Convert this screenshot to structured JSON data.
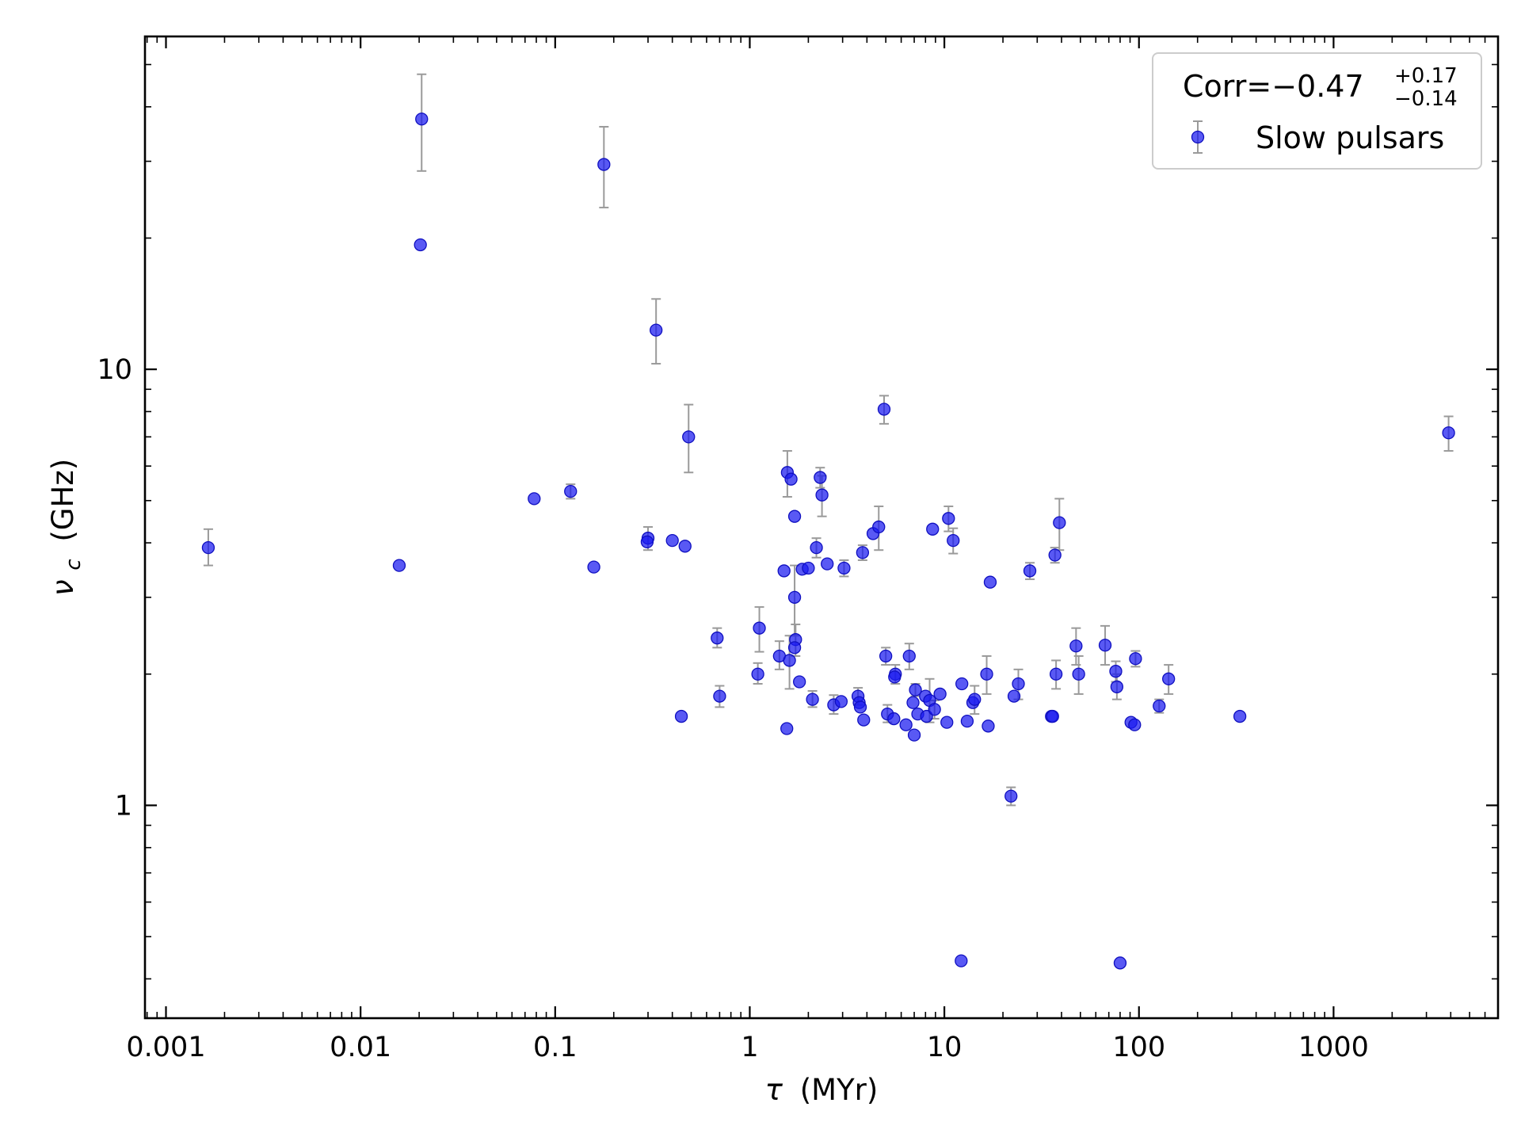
{
  "chart_data": {
    "type": "scatter",
    "xlabel_var": "τ",
    "xlabel_unit": "(MYr)",
    "ylabel_var": "ν",
    "ylabel_sub": "c",
    "ylabel_unit": "(GHz)",
    "xscale": "log",
    "yscale": "log",
    "xlim": [
      0.00078,
      7000
    ],
    "ylim": [
      0.325,
      58
    ],
    "grid": false,
    "legend_position": "top-right",
    "legend": {
      "corr_prefix": "Corr=−0.47",
      "corr_plus": "+0.17",
      "corr_minus": "−0.14",
      "series_label": "Slow pulsars"
    },
    "colors": {
      "points": "#1a1af0",
      "errorbars": "#9a9a9a"
    },
    "x_ticks": [
      {
        "value": 0.001,
        "label": "0.001"
      },
      {
        "value": 0.01,
        "label": "0.01"
      },
      {
        "value": 0.1,
        "label": "0.1"
      },
      {
        "value": 1,
        "label": "1"
      },
      {
        "value": 10,
        "label": "10"
      },
      {
        "value": 100,
        "label": "100"
      },
      {
        "value": 1000,
        "label": "1000"
      }
    ],
    "y_ticks": [
      {
        "value": 1,
        "label": "1"
      },
      {
        "value": 10,
        "label": "10"
      }
    ],
    "points": [
      {
        "x": 0.00165,
        "y": 3.9,
        "lo": 3.55,
        "hi": 4.3
      },
      {
        "x": 0.0158,
        "y": 3.55
      },
      {
        "x": 0.0206,
        "y": 37.5,
        "lo": 28.5,
        "hi": 47.5
      },
      {
        "x": 0.0203,
        "y": 19.3
      },
      {
        "x": 0.078,
        "y": 5.05
      },
      {
        "x": 0.12,
        "y": 5.25,
        "lo": 5.05,
        "hi": 5.45
      },
      {
        "x": 0.158,
        "y": 3.52
      },
      {
        "x": 0.178,
        "y": 29.5,
        "lo": 23.5,
        "hi": 36.0
      },
      {
        "x": 0.3,
        "y": 4.1,
        "lo": 3.85,
        "hi": 4.35
      },
      {
        "x": 0.297,
        "y": 4.02
      },
      {
        "x": 0.33,
        "y": 12.3,
        "lo": 10.3,
        "hi": 14.5
      },
      {
        "x": 0.4,
        "y": 4.05
      },
      {
        "x": 0.465,
        "y": 3.93
      },
      {
        "x": 0.445,
        "y": 1.6
      },
      {
        "x": 0.485,
        "y": 7.0,
        "lo": 5.8,
        "hi": 8.3
      },
      {
        "x": 0.68,
        "y": 2.42,
        "lo": 2.3,
        "hi": 2.55
      },
      {
        "x": 0.7,
        "y": 1.78,
        "lo": 1.68,
        "hi": 1.88
      },
      {
        "x": 1.1,
        "y": 2.0,
        "lo": 1.9,
        "hi": 2.12
      },
      {
        "x": 1.12,
        "y": 2.55,
        "lo": 2.25,
        "hi": 2.85
      },
      {
        "x": 1.42,
        "y": 2.2,
        "lo": 2.05,
        "hi": 2.38
      },
      {
        "x": 1.5,
        "y": 3.45
      },
      {
        "x": 1.55,
        "y": 1.5
      },
      {
        "x": 1.56,
        "y": 5.8,
        "lo": 5.1,
        "hi": 6.5
      },
      {
        "x": 1.6,
        "y": 2.15,
        "lo": 1.85,
        "hi": 2.45
      },
      {
        "x": 1.63,
        "y": 5.6
      },
      {
        "x": 1.7,
        "y": 4.6
      },
      {
        "x": 1.7,
        "y": 3.0,
        "lo": 2.45,
        "hi": 3.55
      },
      {
        "x": 1.72,
        "y": 2.4,
        "lo": 2.2,
        "hi": 2.6
      },
      {
        "x": 1.7,
        "y": 2.3
      },
      {
        "x": 1.8,
        "y": 1.92
      },
      {
        "x": 1.86,
        "y": 3.48
      },
      {
        "x": 2.0,
        "y": 3.5
      },
      {
        "x": 2.1,
        "y": 1.75,
        "lo": 1.68,
        "hi": 1.83
      },
      {
        "x": 2.2,
        "y": 3.9,
        "lo": 3.7,
        "hi": 4.1
      },
      {
        "x": 2.3,
        "y": 5.65,
        "lo": 5.35,
        "hi": 5.95
      },
      {
        "x": 2.35,
        "y": 5.15,
        "lo": 4.6,
        "hi": 5.7
      },
      {
        "x": 2.5,
        "y": 3.58
      },
      {
        "x": 2.7,
        "y": 1.7,
        "lo": 1.62,
        "hi": 1.79
      },
      {
        "x": 2.95,
        "y": 1.73
      },
      {
        "x": 3.05,
        "y": 3.5,
        "lo": 3.35,
        "hi": 3.65
      },
      {
        "x": 3.6,
        "y": 1.78,
        "lo": 1.7,
        "hi": 1.86
      },
      {
        "x": 3.65,
        "y": 1.72
      },
      {
        "x": 3.7,
        "y": 1.68
      },
      {
        "x": 3.8,
        "y": 3.8,
        "lo": 3.65,
        "hi": 3.95
      },
      {
        "x": 3.85,
        "y": 1.57
      },
      {
        "x": 4.3,
        "y": 4.2
      },
      {
        "x": 4.6,
        "y": 4.35,
        "lo": 3.85,
        "hi": 4.85
      },
      {
        "x": 4.9,
        "y": 8.1,
        "lo": 7.5,
        "hi": 8.7
      },
      {
        "x": 5.0,
        "y": 2.2,
        "lo": 2.1,
        "hi": 2.3
      },
      {
        "x": 5.1,
        "y": 1.62,
        "lo": 1.55,
        "hi": 1.7
      },
      {
        "x": 5.5,
        "y": 1.58
      },
      {
        "x": 5.6,
        "y": 2.0,
        "lo": 1.9,
        "hi": 2.1
      },
      {
        "x": 5.55,
        "y": 1.97
      },
      {
        "x": 6.35,
        "y": 1.53
      },
      {
        "x": 6.6,
        "y": 2.2,
        "lo": 2.05,
        "hi": 2.35
      },
      {
        "x": 6.9,
        "y": 1.72
      },
      {
        "x": 7.1,
        "y": 1.84,
        "lo": 1.78,
        "hi": 1.9
      },
      {
        "x": 7.0,
        "y": 1.45
      },
      {
        "x": 7.3,
        "y": 1.62
      },
      {
        "x": 8.0,
        "y": 1.78
      },
      {
        "x": 8.1,
        "y": 1.6
      },
      {
        "x": 8.4,
        "y": 1.74,
        "lo": 1.55,
        "hi": 1.95
      },
      {
        "x": 8.7,
        "y": 4.3
      },
      {
        "x": 8.9,
        "y": 1.66,
        "lo": 1.58,
        "hi": 1.74
      },
      {
        "x": 9.5,
        "y": 1.8
      },
      {
        "x": 10.3,
        "y": 1.55
      },
      {
        "x": 10.5,
        "y": 4.55,
        "lo": 4.25,
        "hi": 4.85
      },
      {
        "x": 11.1,
        "y": 4.05,
        "lo": 3.78,
        "hi": 4.32
      },
      {
        "x": 12.2,
        "y": 0.44
      },
      {
        "x": 12.3,
        "y": 1.9
      },
      {
        "x": 13.1,
        "y": 1.56
      },
      {
        "x": 14.0,
        "y": 1.72
      },
      {
        "x": 14.3,
        "y": 1.75,
        "lo": 1.62,
        "hi": 1.88
      },
      {
        "x": 16.5,
        "y": 2.0,
        "lo": 1.8,
        "hi": 2.2
      },
      {
        "x": 16.8,
        "y": 1.52
      },
      {
        "x": 17.2,
        "y": 3.25
      },
      {
        "x": 22.0,
        "y": 1.05,
        "lo": 1.0,
        "hi": 1.1
      },
      {
        "x": 22.8,
        "y": 1.78
      },
      {
        "x": 24.0,
        "y": 1.9,
        "lo": 1.75,
        "hi": 2.05
      },
      {
        "x": 27.5,
        "y": 3.45,
        "lo": 3.3,
        "hi": 3.6
      },
      {
        "x": 35.5,
        "y": 1.6
      },
      {
        "x": 36.0,
        "y": 1.6
      },
      {
        "x": 37.0,
        "y": 3.75,
        "lo": 3.6,
        "hi": 3.9
      },
      {
        "x": 37.5,
        "y": 2.0,
        "lo": 1.85,
        "hi": 2.15
      },
      {
        "x": 39.0,
        "y": 4.45,
        "lo": 3.85,
        "hi": 5.05
      },
      {
        "x": 47.5,
        "y": 2.32,
        "lo": 2.1,
        "hi": 2.55
      },
      {
        "x": 49.0,
        "y": 2.0,
        "lo": 1.8,
        "hi": 2.2
      },
      {
        "x": 67.0,
        "y": 2.33,
        "lo": 2.1,
        "hi": 2.58
      },
      {
        "x": 76.0,
        "y": 2.03,
        "lo": 1.92,
        "hi": 2.14
      },
      {
        "x": 77.0,
        "y": 1.87,
        "lo": 1.75,
        "hi": 2.0
      },
      {
        "x": 80.0,
        "y": 0.435
      },
      {
        "x": 91.0,
        "y": 1.55
      },
      {
        "x": 95.0,
        "y": 1.53
      },
      {
        "x": 96.0,
        "y": 2.17,
        "lo": 2.08,
        "hi": 2.26
      },
      {
        "x": 127.0,
        "y": 1.69,
        "lo": 1.63,
        "hi": 1.75
      },
      {
        "x": 142.0,
        "y": 1.95,
        "lo": 1.8,
        "hi": 2.1
      },
      {
        "x": 330.0,
        "y": 1.6
      },
      {
        "x": 3900.0,
        "y": 7.15,
        "lo": 6.5,
        "hi": 7.8
      }
    ]
  }
}
